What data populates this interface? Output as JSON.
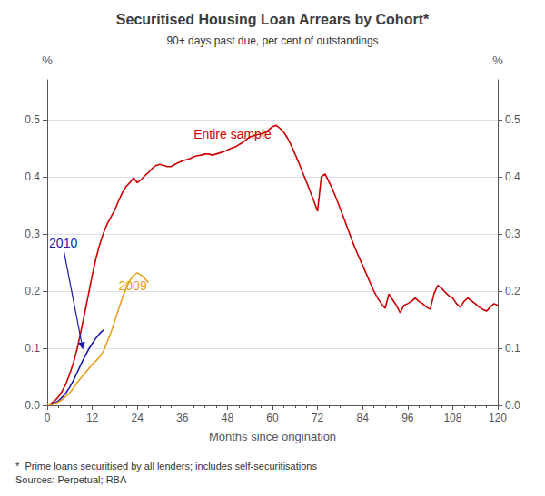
{
  "chart_data": {
    "type": "line",
    "title": "Securitised Housing Loan Arrears by Cohort*",
    "subtitle": "90+ days past due, per cent of outstandings",
    "footnote": "*  Prime loans securitised by all lenders; includes self-securitisations\nSources: Perpetual; RBA",
    "xlabel": "Months since origination",
    "ylabel": "%",
    "y2label": "%",
    "xlim": [
      0,
      120
    ],
    "xticks": [
      0,
      12,
      24,
      36,
      48,
      60,
      72,
      84,
      96,
      108,
      120
    ],
    "ylim": [
      0.0,
      0.57
    ],
    "yticks": [
      {
        "value": 0.0,
        "label": "0.0"
      },
      0.1,
      0.2,
      0.3,
      0.4,
      0.5
    ],
    "y2lim": [
      0.0,
      0.57
    ],
    "y2ticks": [
      {
        "value": 0.0,
        "label": "0.0"
      },
      0.1,
      0.2,
      0.3,
      0.4,
      0.5
    ],
    "grid": true,
    "series": [
      {
        "color": "#cc0000",
        "x": [
          0,
          1,
          2,
          3,
          4,
          5,
          6,
          7,
          8,
          9,
          10,
          11,
          12,
          13,
          14,
          15,
          16,
          17,
          18,
          19,
          20,
          21,
          22,
          23,
          24,
          25,
          26,
          27,
          28,
          29,
          30,
          31,
          32,
          33,
          34,
          35,
          36,
          37,
          38,
          39,
          40,
          41,
          42,
          43,
          44,
          45,
          46,
          47,
          48,
          49,
          50,
          51,
          52,
          53,
          54,
          55,
          56,
          57,
          58,
          59,
          60,
          61,
          62,
          63,
          64,
          65,
          66,
          67,
          68,
          69,
          70,
          71,
          72,
          73,
          74,
          75,
          76,
          77,
          78,
          79,
          80,
          81,
          82,
          83,
          84,
          85,
          86,
          87,
          88,
          89,
          90,
          91,
          92,
          93,
          94,
          95,
          96,
          97,
          98,
          99,
          100,
          101,
          102,
          103,
          104,
          105,
          106,
          107,
          108,
          109,
          110,
          111,
          112,
          113,
          114,
          115,
          116,
          117,
          118,
          119,
          120
        ],
        "values": [
          0.0,
          0.003,
          0.008,
          0.015,
          0.025,
          0.038,
          0.055,
          0.075,
          0.1,
          0.13,
          0.162,
          0.195,
          0.228,
          0.258,
          0.282,
          0.302,
          0.318,
          0.33,
          0.342,
          0.358,
          0.372,
          0.383,
          0.39,
          0.398,
          0.39,
          0.395,
          0.402,
          0.408,
          0.415,
          0.42,
          0.422,
          0.42,
          0.418,
          0.418,
          0.422,
          0.425,
          0.428,
          0.43,
          0.432,
          0.435,
          0.437,
          0.438,
          0.44,
          0.44,
          0.438,
          0.44,
          0.442,
          0.444,
          0.447,
          0.45,
          0.452,
          0.456,
          0.46,
          0.465,
          0.47,
          0.472,
          0.474,
          0.475,
          0.478,
          0.482,
          0.488,
          0.49,
          0.485,
          0.478,
          0.468,
          0.455,
          0.44,
          0.425,
          0.408,
          0.392,
          0.375,
          0.358,
          0.34,
          0.4,
          0.405,
          0.392,
          0.378,
          0.362,
          0.345,
          0.328,
          0.31,
          0.292,
          0.275,
          0.26,
          0.245,
          0.23,
          0.215,
          0.2,
          0.188,
          0.178,
          0.17,
          0.195,
          0.185,
          0.175,
          0.162,
          0.175,
          0.178,
          0.182,
          0.188,
          0.182,
          0.178,
          0.172,
          0.168,
          0.195,
          0.21,
          0.205,
          0.198,
          0.192,
          0.188,
          0.178,
          0.172,
          0.182,
          0.188,
          0.183,
          0.178,
          0.172,
          0.168,
          0.165,
          0.172,
          0.178,
          0.175
        ]
      },
      {
        "color": "#1a1aaa",
        "x": [
          0,
          1,
          2,
          3,
          4,
          5,
          6,
          7,
          8,
          9,
          10,
          11,
          12,
          13,
          14,
          15
        ],
        "values": [
          0.0,
          0.002,
          0.004,
          0.008,
          0.014,
          0.022,
          0.032,
          0.044,
          0.058,
          0.072,
          0.085,
          0.098,
          0.108,
          0.118,
          0.126,
          0.132
        ]
      },
      {
        "color": "#e8a020",
        "x": [
          0,
          1,
          2,
          3,
          4,
          5,
          6,
          7,
          8,
          9,
          10,
          11,
          12,
          13,
          14,
          15,
          16,
          17,
          18,
          19,
          20,
          21,
          22,
          23,
          24,
          25,
          26,
          27
        ],
        "values": [
          0.0,
          0.001,
          0.003,
          0.006,
          0.01,
          0.016,
          0.022,
          0.03,
          0.04,
          0.048,
          0.056,
          0.064,
          0.072,
          0.078,
          0.085,
          0.095,
          0.112,
          0.128,
          0.148,
          0.168,
          0.188,
          0.205,
          0.218,
          0.228,
          0.232,
          0.228,
          0.222,
          0.215
        ]
      }
    ],
    "annotations": [
      {
        "text": "Entire sample",
        "x": 39,
        "y": 0.463,
        "color": "#cc0000"
      },
      {
        "text": "2010",
        "x": 0.5,
        "y": 0.273,
        "color": "#1a1aaa",
        "arrow": {
          "from": [
            4.5,
            0.268
          ],
          "to": [
            9.5,
            0.098
          ]
        }
      },
      {
        "text": "2009",
        "x": 19,
        "y": 0.198,
        "color": "#e8a020"
      }
    ]
  }
}
